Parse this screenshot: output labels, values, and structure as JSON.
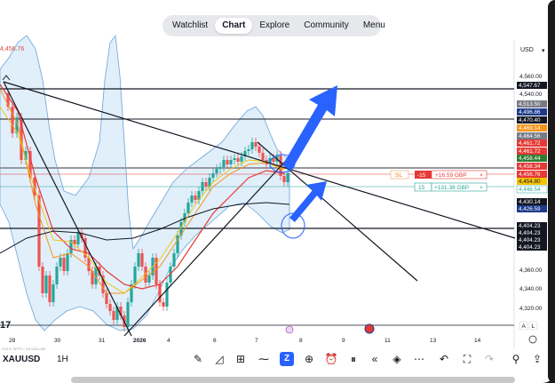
{
  "nav": {
    "items": [
      "Watchlist",
      "Chart",
      "Explore",
      "Community",
      "Menu"
    ],
    "active": "Chart"
  },
  "axis": {
    "currency": "USD",
    "caret": "▾",
    "price_ticks": [
      "4,560.00",
      "4,540.00",
      "4,360.00",
      "4,340.00",
      "4,320.00"
    ],
    "price_tags": [
      {
        "label": "4,547.67",
        "bg": "#131722",
        "fg": "#ffffff"
      },
      {
        "label": "4,513.50",
        "bg": "#787b86",
        "fg": "#ffffff"
      },
      {
        "label": "4,496.86",
        "bg": "#1e3a8a",
        "fg": "#ffffff"
      },
      {
        "label": "4,470.40",
        "bg": "#131722",
        "fg": "#ffffff"
      },
      {
        "label": "4,469.14",
        "bg": "#f7931a",
        "fg": "#ffffff"
      },
      {
        "label": "4,464.56",
        "bg": "#787b86",
        "fg": "#ffffff"
      },
      {
        "label": "4,461.72",
        "bg": "#e53935",
        "fg": "#ffffff"
      },
      {
        "label": "4,461.72",
        "bg": "#e53935",
        "fg": "#ffffff"
      },
      {
        "label": "4,458.44",
        "bg": "#2e7d32",
        "fg": "#ffffff"
      },
      {
        "label": "4,458.34",
        "bg": "#e53935",
        "fg": "#ffffff"
      },
      {
        "label": "4,456.76",
        "bg": "#e53935",
        "fg": "#ffffff"
      },
      {
        "label": "4,454.80",
        "bg": "#f5c400",
        "fg": "#131722"
      },
      {
        "label": "4,446.54",
        "bg": "#ffffff",
        "fg": "#26a69a"
      },
      {
        "label": "4,430.14",
        "bg": "#131722",
        "fg": "#ffffff"
      },
      {
        "label": "4,426.59",
        "bg": "#1e3a8a",
        "fg": "#ffffff"
      },
      {
        "label": "4,404.23",
        "bg": "#131722",
        "fg": "#ffffff"
      },
      {
        "label": "4,404.23",
        "bg": "#131722",
        "fg": "#ffffff"
      },
      {
        "label": "4,404.23",
        "bg": "#131722",
        "fg": "#ffffff"
      },
      {
        "label": "4,404.23",
        "bg": "#131722",
        "fg": "#ffffff"
      }
    ],
    "time_ticks": [
      "28",
      "30",
      "31",
      "2026",
      "4",
      "6",
      "7",
      "8",
      "9",
      "11",
      "13",
      "14"
    ],
    "prev_price": "4,456.76"
  },
  "positions": {
    "sl": {
      "tag": "SL",
      "qty": "-15",
      "pnl": "+16.59 GBP",
      "close": "×"
    },
    "tp": {
      "qty": "15",
      "pnl": "+131.39 GBP",
      "close": "×"
    }
  },
  "axis_letters": [
    "A",
    "L"
  ],
  "bottom": {
    "symbol": "XAUUSD",
    "interval": "1H",
    "tiny_label": "GOLD SPOT / US DOLLAR",
    "tools": [
      "pencil-icon",
      "indicators-icon",
      "layout-grid-icon",
      "trend-tool-icon",
      "active-tool-icon",
      "plus-icon",
      "alarm-icon",
      "replay-icon",
      "rewind-icon",
      "layers-icon",
      "more-icon",
      "undo-icon",
      "fullscreen-icon",
      "redo-icon",
      "ideas-icon",
      "share-icon"
    ],
    "active_tool_glyph": "Z"
  },
  "colors": {
    "bull": "#26a69a",
    "bear": "#ef5350",
    "accent": "#2962ff",
    "band": "#d6e9f8"
  },
  "logo": "17"
}
